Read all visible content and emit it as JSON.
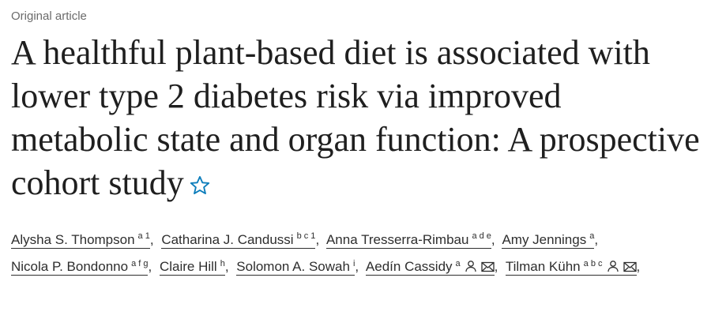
{
  "article_type": "Original article",
  "title": "A healthful plant-based diet is associated with lower type 2 diabetes risk via improved metabolic state and organ function: A prospective cohort study",
  "separator": ",",
  "authors": [
    {
      "name": "Alysha S. Thompson",
      "affiliations": "a 1",
      "corresponding": false
    },
    {
      "name": "Catharina J. Candussi",
      "affiliations": "b c 1",
      "corresponding": false
    },
    {
      "name": "Anna Tresserra-Rimbau",
      "affiliations": "a d e",
      "corresponding": false
    },
    {
      "name": "Amy Jennings",
      "affiliations": "a",
      "corresponding": false
    },
    {
      "name": "Nicola P. Bondonno",
      "affiliations": "a f g",
      "corresponding": false
    },
    {
      "name": "Claire Hill",
      "affiliations": "h",
      "corresponding": false
    },
    {
      "name": "Solomon A. Sowah",
      "affiliations": "i",
      "corresponding": false
    },
    {
      "name": "Aedín Cassidy",
      "affiliations": "a",
      "corresponding": true
    },
    {
      "name": "Tilman Kühn",
      "affiliations": "a b c",
      "corresponding": true
    }
  ]
}
